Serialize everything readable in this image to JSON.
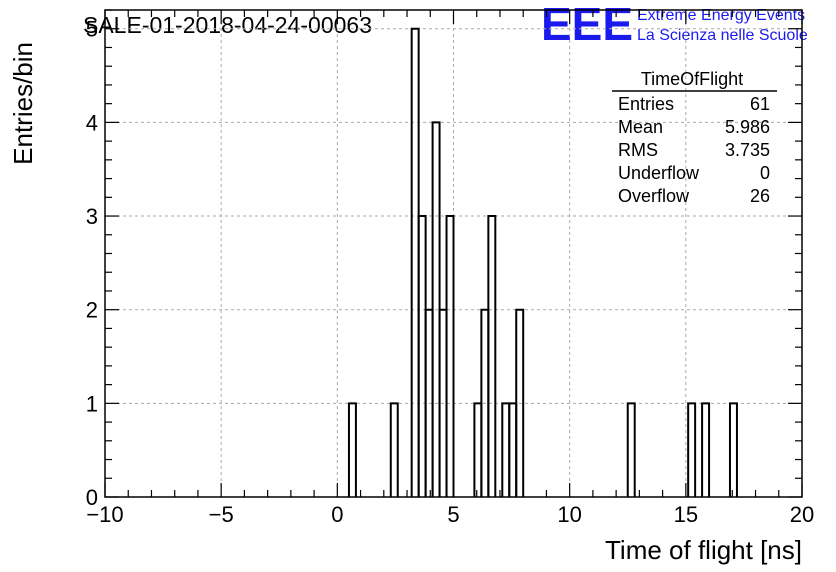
{
  "header": {
    "run_title": "SALE-01-2018-04-24-00063",
    "logo_letters": "EEE",
    "logo_line1": "Extreme Energy Events",
    "logo_line2": "La Scienza nelle Scuole",
    "logo_color": "#1a1aee"
  },
  "stats_box": {
    "name": "TimeOfFlight",
    "rows": [
      {
        "label": "Entries",
        "value": "61"
      },
      {
        "label": "Mean",
        "value": "5.986"
      },
      {
        "label": "RMS",
        "value": "3.735"
      },
      {
        "label": "Underflow",
        "value": "0"
      },
      {
        "label": "Overflow",
        "value": "26"
      }
    ]
  },
  "chart_data": {
    "type": "bar",
    "style": "step-histogram",
    "xlabel": "Time of flight [ns]",
    "ylabel": "Entries/bin",
    "xlim": [
      -10,
      20
    ],
    "ylim": [
      0,
      5.2
    ],
    "grid": true,
    "x_ticks": [
      -10,
      -5,
      0,
      5,
      10,
      15,
      20
    ],
    "x_tick_labels": [
      "−10",
      "−5",
      "0",
      "5",
      "10",
      "15",
      "20"
    ],
    "y_ticks": [
      0,
      1,
      2,
      3,
      4,
      5
    ],
    "y_tick_labels": [
      "0",
      "1",
      "2",
      "3",
      "4",
      "5"
    ],
    "bin_width": 0.3,
    "bins": [
      {
        "x0": 0.5,
        "x1": 0.8,
        "count": 1
      },
      {
        "x0": 2.3,
        "x1": 2.6,
        "count": 1
      },
      {
        "x0": 3.2,
        "x1": 3.5,
        "count": 5
      },
      {
        "x0": 3.5,
        "x1": 3.8,
        "count": 3
      },
      {
        "x0": 3.8,
        "x1": 4.1,
        "count": 2
      },
      {
        "x0": 4.1,
        "x1": 4.4,
        "count": 4
      },
      {
        "x0": 4.4,
        "x1": 4.7,
        "count": 2
      },
      {
        "x0": 4.7,
        "x1": 5.0,
        "count": 3
      },
      {
        "x0": 5.9,
        "x1": 6.2,
        "count": 1
      },
      {
        "x0": 6.2,
        "x1": 6.5,
        "count": 2
      },
      {
        "x0": 6.5,
        "x1": 6.8,
        "count": 3
      },
      {
        "x0": 7.1,
        "x1": 7.4,
        "count": 1
      },
      {
        "x0": 7.4,
        "x1": 7.7,
        "count": 1
      },
      {
        "x0": 7.7,
        "x1": 8.0,
        "count": 2
      },
      {
        "x0": 12.5,
        "x1": 12.8,
        "count": 1
      },
      {
        "x0": 15.1,
        "x1": 15.4,
        "count": 1
      },
      {
        "x0": 15.7,
        "x1": 16.0,
        "count": 1
      },
      {
        "x0": 16.9,
        "x1": 17.2,
        "count": 1
      }
    ],
    "line_color": "#000000",
    "grid_color": "#aaaaaa"
  }
}
